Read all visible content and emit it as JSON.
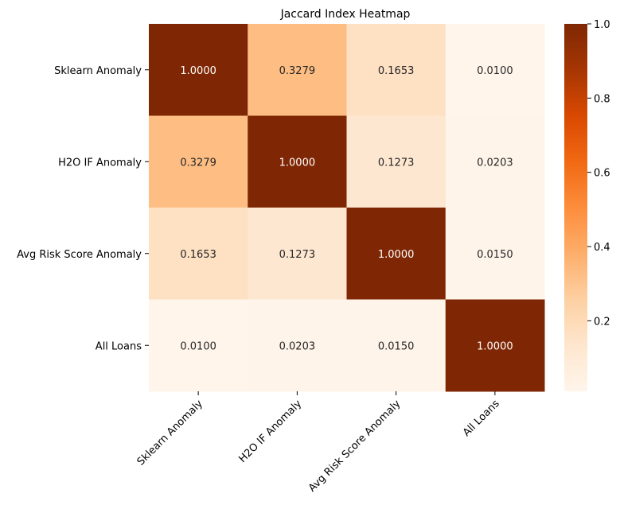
{
  "chart_data": {
    "type": "heatmap",
    "title": "Jaccard Index Heatmap",
    "row_labels": [
      "Sklearn Anomaly",
      "H2O IF Anomaly",
      "Avg Risk Score Anomaly",
      "All Loans"
    ],
    "col_labels": [
      "Sklearn Anomaly",
      "H2O IF Anomaly",
      "Avg Risk Score Anomaly",
      "All Loans"
    ],
    "values": [
      [
        1.0,
        0.3279,
        0.1653,
        0.01
      ],
      [
        0.3279,
        1.0,
        0.1273,
        0.0203
      ],
      [
        0.1653,
        0.1273,
        1.0,
        0.015
      ],
      [
        0.01,
        0.0203,
        0.015,
        1.0
      ]
    ],
    "cell_labels": [
      [
        "1.0000",
        "0.3279",
        "0.1653",
        "0.0100"
      ],
      [
        "0.3279",
        "1.0000",
        "0.1273",
        "0.0203"
      ],
      [
        "0.1653",
        "0.1273",
        "1.0000",
        "0.0150"
      ],
      [
        "0.0100",
        "0.0203",
        "0.0150",
        "1.0000"
      ]
    ],
    "colormap": "Oranges",
    "color_range": [
      0.01,
      1.0
    ],
    "colorbar_ticks": [
      "1.0",
      "0.8",
      "0.6",
      "0.4",
      "0.2"
    ],
    "colorbar_tick_values": [
      1.0,
      0.8,
      0.6,
      0.4,
      0.2
    ],
    "colorbar_stops": [
      "#fff5eb",
      "#fee6ce",
      "#fdd0a2",
      "#fdae6b",
      "#fd8d3c",
      "#f16913",
      "#d94801",
      "#a63603",
      "#7f2704"
    ],
    "annotation_color_light": "#ffffff",
    "annotation_color_dark": "#262626"
  }
}
